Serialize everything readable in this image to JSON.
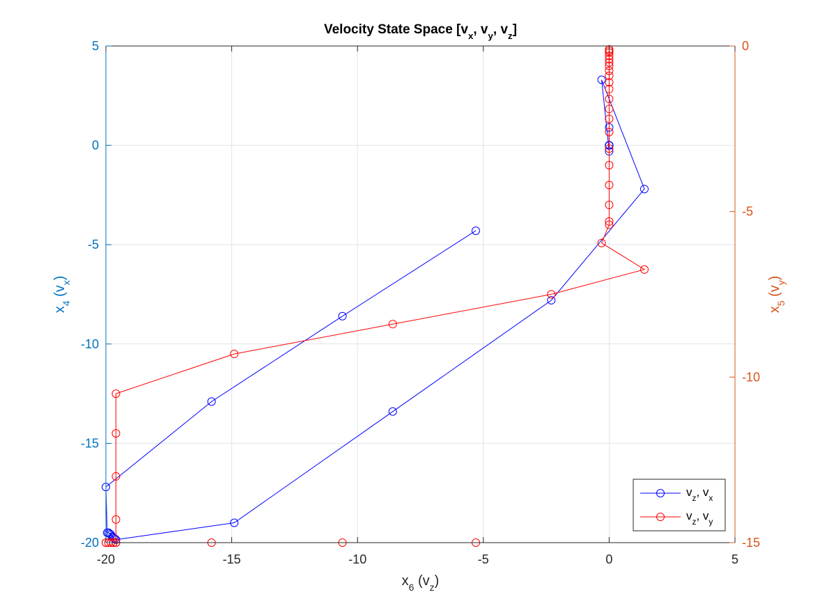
{
  "chart_data": {
    "type": "line",
    "title": {
      "main": "Velocity State Space [v",
      "parts": [
        [
          "x",
          ", v"
        ],
        [
          "y",
          ", v"
        ],
        [
          "z",
          "]"
        ]
      ]
    },
    "xlabel": {
      "base": "x",
      "sub": "6",
      "rest": " (v",
      "sub2": "z",
      "end": ")"
    },
    "ylabel_left": {
      "base": "x",
      "sub": "4",
      "rest": " (v",
      "sub2": "x",
      "end": ")"
    },
    "ylabel_right": {
      "base": "x",
      "sub": "5",
      "rest": " (v",
      "sub2": "y",
      "end": ")"
    },
    "xlim": [
      -20,
      5
    ],
    "ylim_left": [
      -20,
      5
    ],
    "ylim_right": [
      -15,
      0
    ],
    "xticks": [
      -20,
      -15,
      -10,
      -5,
      0,
      5
    ],
    "yticks_left": [
      -20,
      -15,
      -10,
      -5,
      0,
      5
    ],
    "yticks_right": [
      -15,
      -10,
      -5,
      0
    ],
    "xtick_labels": [
      "-20",
      "-15",
      "-10",
      "-5",
      "0",
      "5"
    ],
    "yticks_left_labels": [
      "-20",
      "-15",
      "-10",
      "-5",
      "0",
      "5"
    ],
    "yticks_right_labels": [
      "-15",
      "-10",
      "-5",
      "0"
    ],
    "grid": true,
    "legend_position": "bottom-right",
    "colors": {
      "left_axis": "#0072BD",
      "right_axis": "#D95319",
      "series1": "#0000FF",
      "series2": "#FF0000"
    },
    "series": [
      {
        "name": "v_z, v_x",
        "legend": {
          "a": "v",
          "as": "z",
          "b": ", v",
          "bs": "x"
        },
        "axis": "left",
        "x": [
          0,
          0,
          0,
          0,
          0,
          0,
          0,
          -0.3,
          1.4,
          -2.3,
          -8.6,
          -14.9,
          -19.6,
          -19.65,
          -19.7,
          -19.75,
          -19.8,
          -19.85,
          -19.9,
          -19.95,
          -20.0,
          -15.8,
          -10.6,
          -5.3
        ],
        "y": [
          0,
          0,
          0,
          0,
          0.9,
          0,
          -0.3,
          3.3,
          -2.2,
          -7.8,
          -13.4,
          -19.0,
          -19.85,
          -19.8,
          -19.75,
          -19.7,
          -19.6,
          -19.55,
          -19.5,
          -19.5,
          -17.2,
          -12.9,
          -8.6,
          -4.3
        ]
      },
      {
        "name": "v_z, v_y",
        "legend": {
          "a": "v",
          "as": "z",
          "b": ", v",
          "bs": "y"
        },
        "axis": "right",
        "x": [
          0,
          0,
          0,
          0,
          0,
          0,
          0,
          0,
          0,
          0,
          0,
          0,
          0,
          0,
          0,
          0,
          0,
          0,
          0,
          0,
          0,
          -0.3,
          1.4,
          -2.3,
          -8.6,
          -14.9,
          -19.6,
          -19.6,
          -19.6,
          -19.6,
          -19.6,
          -19.6,
          -19.7,
          -19.8,
          -19.9,
          -20.0,
          -20.0,
          -15.8,
          -10.6,
          -5.3
        ],
        "y": [
          -0.1,
          -0.15,
          -0.2,
          -0.3,
          -0.4,
          -0.5,
          -0.6,
          -0.75,
          -0.9,
          -1.1,
          -1.3,
          -1.6,
          -1.9,
          -2.2,
          -2.6,
          -3.1,
          -3.6,
          -4.2,
          -4.8,
          -5.3,
          -5.4,
          -5.95,
          -6.75,
          -7.5,
          -8.4,
          -9.3,
          -10.5,
          -11.7,
          -13.0,
          -14.3,
          -15.0,
          -15.0,
          -15.0,
          -15.0,
          -15.0,
          -15.0,
          -15.0,
          -15.0,
          -15.0,
          -15.0
        ]
      }
    ]
  }
}
